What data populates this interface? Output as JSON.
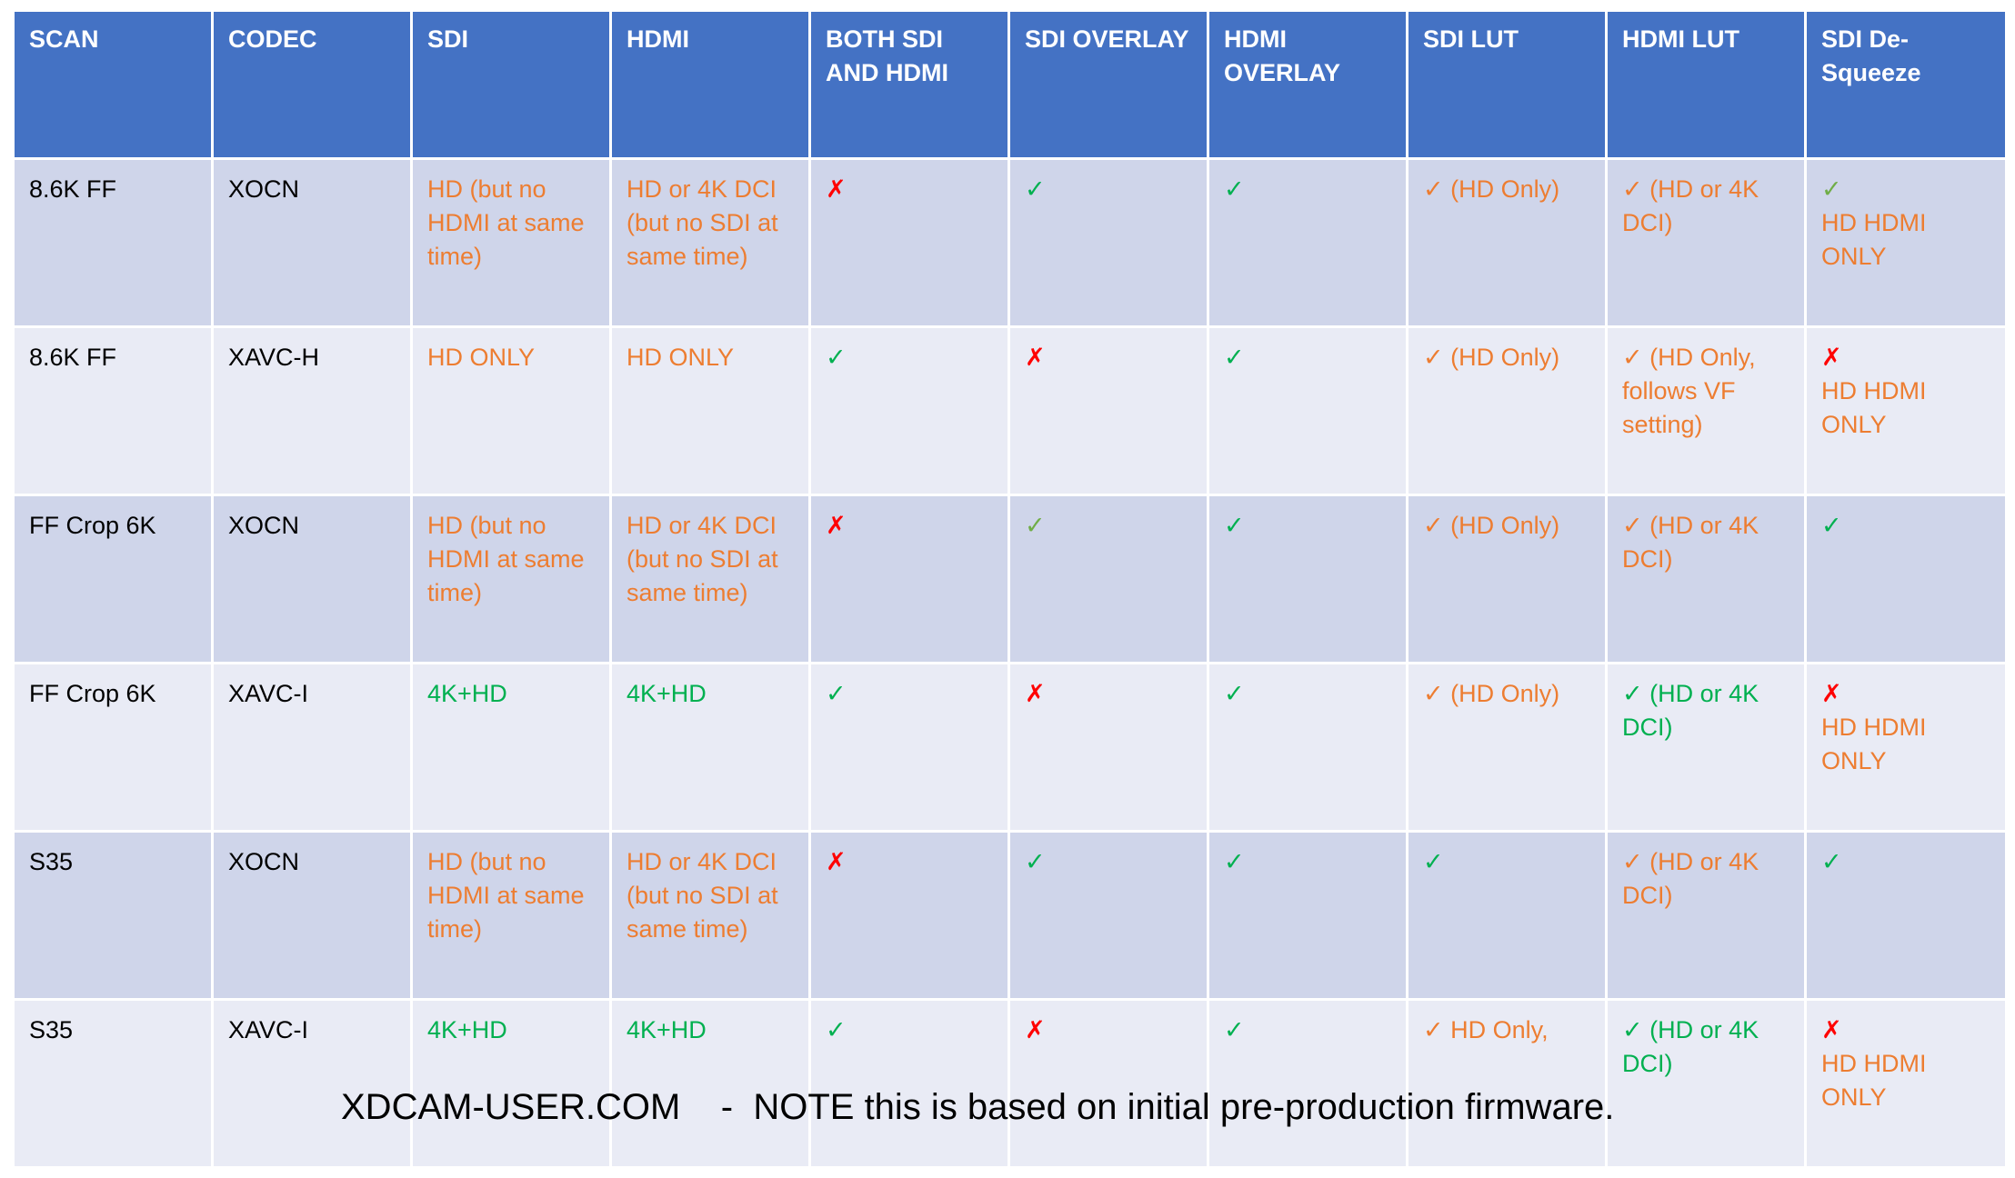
{
  "colors": {
    "header_bg": "#4472c4",
    "row_dark": "#cfd5ea",
    "row_light": "#e9ebf5",
    "orange": "#ed7d31",
    "green": "#00b050",
    "light_green": "#70ad47",
    "red": "#ff0000"
  },
  "headers": [
    "SCAN",
    "CODEC",
    "SDI",
    "HDMI",
    "BOTH SDI AND HDMI",
    "SDI OVERLAY",
    "HDMI OVERLAY",
    "SDI LUT",
    "HDMI LUT",
    "SDI De-Squeeze"
  ],
  "rows": [
    {
      "scan": "8.6K FF",
      "codec": "XOCN",
      "sdi": "HD (but no HDMI at same time)",
      "hdmi": "HD or 4K DCI (but no SDI at same time)",
      "both": "✗",
      "sdi_overlay": "✓",
      "hdmi_overlay": "✓",
      "sdi_lut": "✓ (HD Only)",
      "hdmi_lut": "✓ (HD or 4K DCI)",
      "desqueeze_mark": "✓",
      "desqueeze_note": "HD HDMI ONLY"
    },
    {
      "scan": "8.6K FF",
      "codec": "XAVC-H",
      "sdi": "HD ONLY",
      "hdmi": "HD ONLY",
      "both": "✓",
      "sdi_overlay": "✗",
      "hdmi_overlay": "✓",
      "sdi_lut": "✓ (HD Only)",
      "hdmi_lut": "✓ (HD Only, follows VF setting)",
      "desqueeze_mark": "✗",
      "desqueeze_note": "HD HDMI ONLY"
    },
    {
      "scan": "FF Crop 6K",
      "codec": "XOCN",
      "sdi": "HD (but no HDMI at same time)",
      "hdmi": "HD or 4K DCI (but no SDI at same time)",
      "both": "✗",
      "sdi_overlay": "✓",
      "hdmi_overlay": "✓",
      "sdi_lut": "✓ (HD Only)",
      "hdmi_lut": "✓ (HD or 4K DCI)",
      "desqueeze_mark": "✓",
      "desqueeze_note": ""
    },
    {
      "scan": "FF Crop 6K",
      "codec": "XAVC-I",
      "sdi": "4K+HD",
      "hdmi": "4K+HD",
      "both": "✓",
      "sdi_overlay": "✗",
      "hdmi_overlay": "✓",
      "sdi_lut": "✓ (HD Only)",
      "hdmi_lut": "✓ (HD or 4K DCI)",
      "desqueeze_mark": "✗",
      "desqueeze_note": "HD HDMI ONLY"
    },
    {
      "scan": "S35",
      "codec": "XOCN",
      "sdi": "HD (but no HDMI at same time)",
      "hdmi": "HD or 4K DCI (but no SDI at same time)",
      "both": "✗",
      "sdi_overlay": "✓",
      "hdmi_overlay": "✓",
      "sdi_lut": "✓",
      "hdmi_lut": "✓ (HD or 4K DCI)",
      "desqueeze_mark": "✓",
      "desqueeze_note": ""
    },
    {
      "scan": "S35",
      "codec": "XAVC-I",
      "sdi": "4K+HD",
      "hdmi": "4K+HD",
      "both": "✓",
      "sdi_overlay": "✗",
      "hdmi_overlay": "✓",
      "sdi_lut": "✓ HD Only,",
      "hdmi_lut": "✓ (HD or 4K DCI)",
      "desqueeze_mark": "✗",
      "desqueeze_note": "HD HDMI ONLY"
    }
  ],
  "footer": "XDCAM-USER.COM    -  NOTE this is based on initial pre-production firmware."
}
